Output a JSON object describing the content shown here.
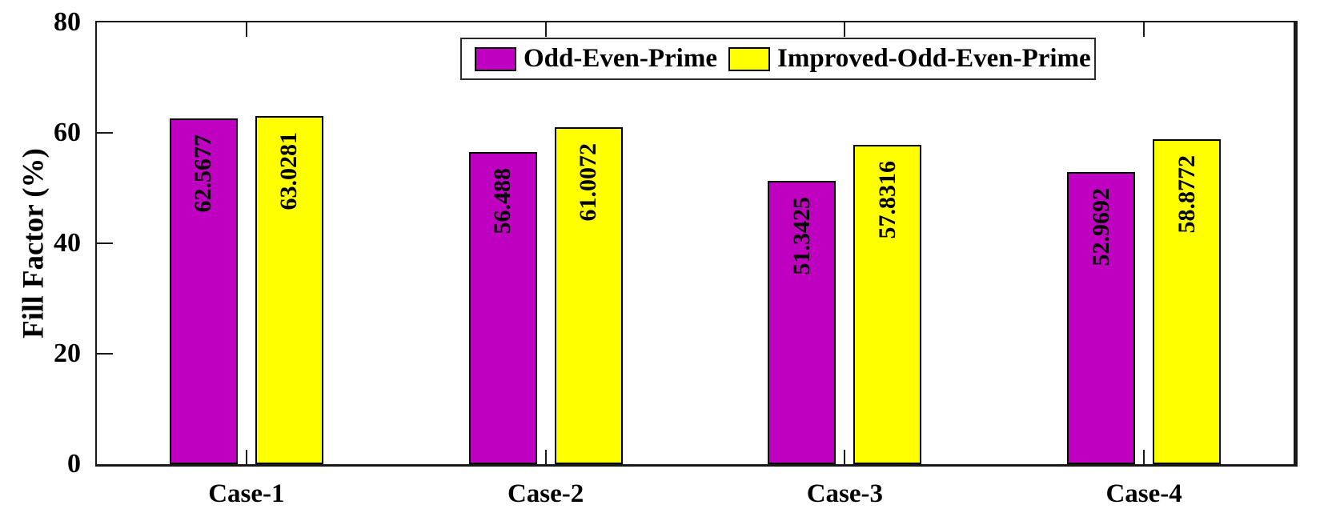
{
  "chart_data": {
    "type": "bar",
    "title": "",
    "categories": [
      "Case-1",
      "Case-2",
      "Case-3",
      "Case-4"
    ],
    "series": [
      {
        "name": "Odd-Even-Prime",
        "color": "#C000C0",
        "values": [
          62.5677,
          56.488,
          51.3425,
          52.9692
        ]
      },
      {
        "name": "Improved-Odd-Even-Prime",
        "color": "#FFFF00",
        "values": [
          63.0281,
          61.0072,
          57.8316,
          58.8772
        ]
      }
    ],
    "bar_value_labels": [
      [
        "62.5677",
        "56.488",
        "51.3425",
        "52.9692"
      ],
      [
        "63.0281",
        "61.0072",
        "57.8316",
        "58.8772"
      ]
    ],
    "xlabel": "",
    "ylabel": "Fill Factor (%)",
    "ylim": [
      0,
      80
    ],
    "yticks": [
      0,
      20,
      40,
      60,
      80
    ],
    "grid": false,
    "legend_position": "top-center",
    "bar_labels_rotated": true,
    "frame_color": "#191919",
    "bar_edge_color": "#000000",
    "background_color": "#ffffff"
  }
}
